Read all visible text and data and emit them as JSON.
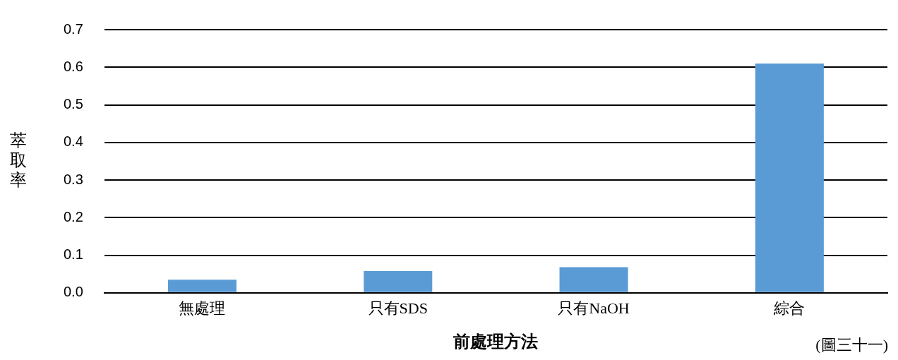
{
  "chart_data": {
    "type": "bar",
    "xlabel": "前處理方法",
    "ylabel": "萃取率",
    "categories": [
      "無處理",
      "只有SDS",
      "只有NaOH",
      "綜合"
    ],
    "values": [
      0.035,
      0.058,
      0.068,
      0.61
    ],
    "color": "#5b9bd5",
    "ylim": [
      0,
      0.7
    ],
    "yticks": [
      {
        "value": 0,
        "label": "0.0"
      },
      {
        "value": 0.1,
        "label": "0.1"
      },
      {
        "value": 0.2,
        "label": "0.2"
      },
      {
        "value": 0.3,
        "label": "0.3"
      },
      {
        "value": 0.4,
        "label": "0.4"
      },
      {
        "value": 0.5,
        "label": "0.5"
      },
      {
        "value": 0.6,
        "label": "0.6"
      },
      {
        "value": 0.7,
        "label": "0.7"
      }
    ],
    "grid": "y",
    "legend": false,
    "annotations": [
      "(圖三十一)"
    ]
  }
}
